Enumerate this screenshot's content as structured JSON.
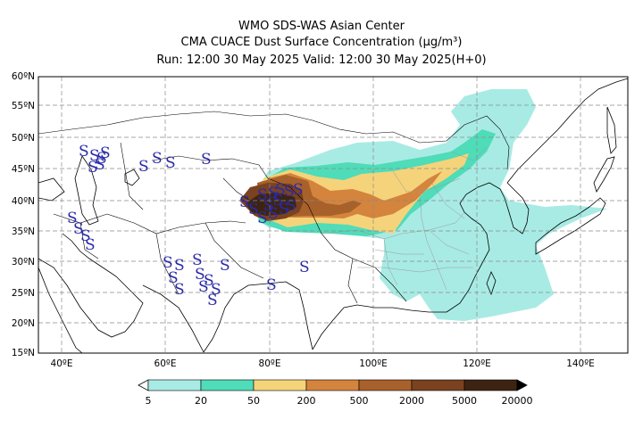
{
  "header": {
    "line1": "WMO SDS-WAS Asian Center",
    "line2": "CMA CUACE Dust Surface Concentration (μg/m³)",
    "line3": "Run: 12:00 30 May 2025    Valid: 12:00 30 May 2025(H+0)"
  },
  "axes": {
    "lat_labels": [
      "60ºN",
      "55ºN",
      "50ºN",
      "45ºN",
      "40ºN",
      "35ºN",
      "30ºN",
      "25ºN",
      "20ºN",
      "15ºN"
    ],
    "lon_labels": [
      "40ºE",
      "60ºE",
      "80ºE",
      "100ºE",
      "120ºE",
      "140ºE"
    ]
  },
  "colorbar": {
    "labels": [
      "5",
      "20",
      "50",
      "200",
      "500",
      "2000",
      "5000",
      "20000"
    ],
    "colors": [
      "#a8ebe4",
      "#4fdcb8",
      "#f5d37a",
      "#d4843c",
      "#a8612a",
      "#7a4220",
      "#3d2412"
    ]
  },
  "symbol": "S",
  "colors": {
    "grid": "#888888",
    "coast": "#000000",
    "symbol": "#2a2aa8"
  }
}
